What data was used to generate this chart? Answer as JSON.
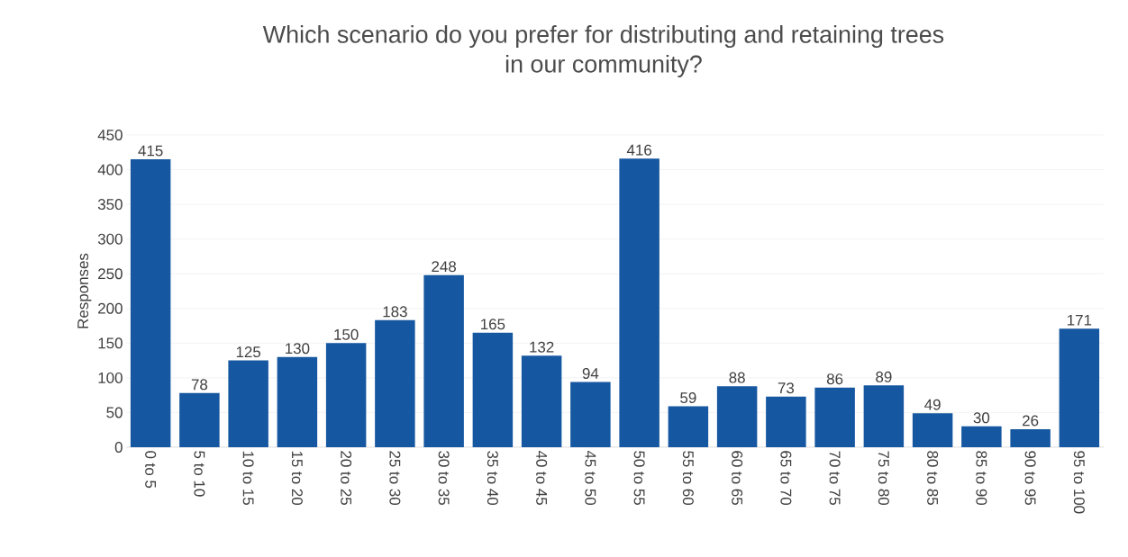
{
  "chart_data": {
    "type": "bar",
    "title": "Which scenario do you prefer for distributing and retaining trees\nin our community?",
    "ylabel": "Responses",
    "categories": [
      "0 to 5",
      "5 to 10",
      "10 to 15",
      "15 to 20",
      "20 to 25",
      "25 to 30",
      "30 to 35",
      "35 to 40",
      "40 to 45",
      "45 to 50",
      "50 to 55",
      "55 to 60",
      "60 to 65",
      "65 to 70",
      "70 to 75",
      "75 to 80",
      "80 to 85",
      "85 to 90",
      "90 to 95",
      "95 to 100"
    ],
    "values": [
      415,
      78,
      125,
      130,
      150,
      183,
      248,
      165,
      132,
      94,
      416,
      59,
      88,
      73,
      86,
      89,
      49,
      30,
      26,
      171
    ],
    "color": "#1557a0",
    "ylim": [
      0,
      450
    ],
    "yticks": [
      0,
      50,
      100,
      150,
      200,
      250,
      300,
      350,
      400,
      450
    ],
    "grid": "y",
    "data_labels": true
  }
}
